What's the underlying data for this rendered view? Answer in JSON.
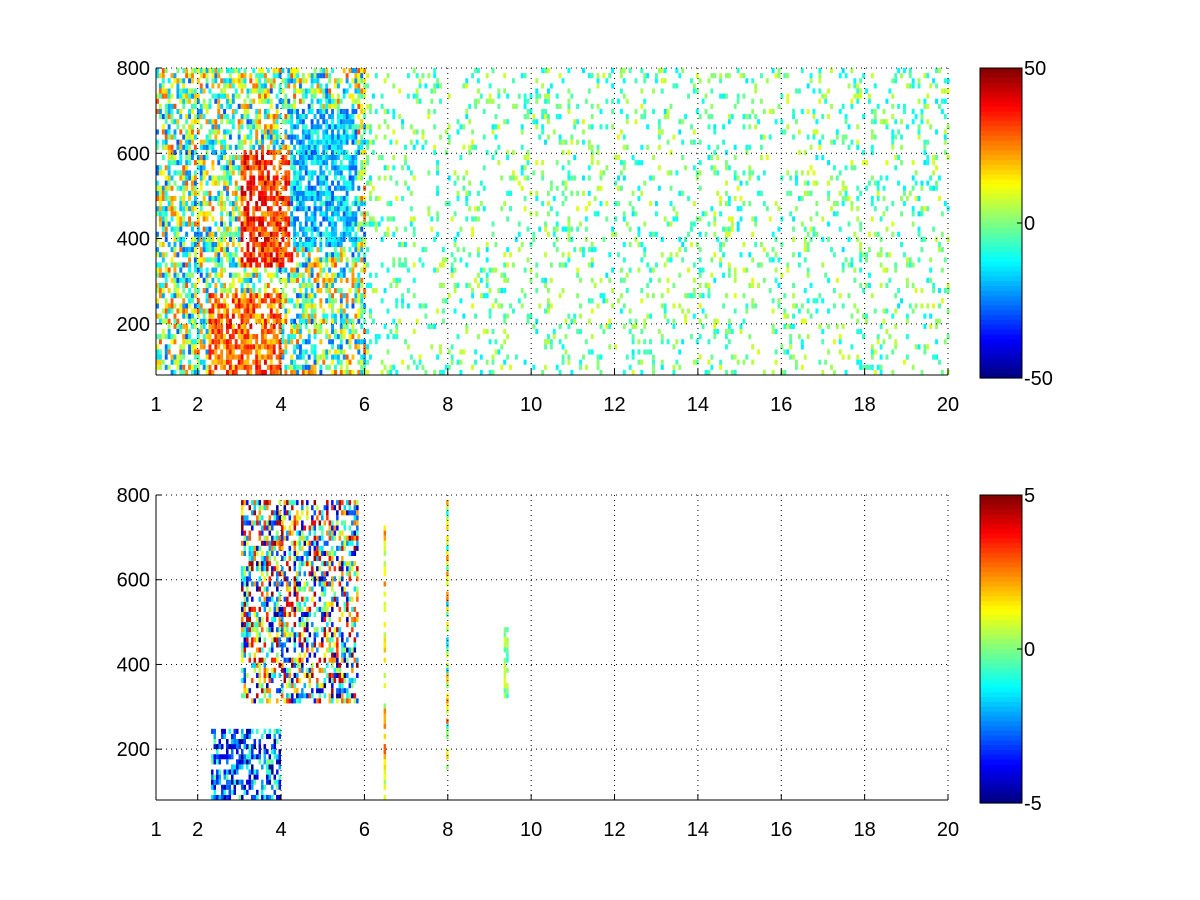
{
  "chart_data": [
    {
      "type": "heatmap",
      "title": "",
      "xlabel": "",
      "ylabel": "",
      "xlim": [
        1,
        20
      ],
      "ylim": [
        80,
        800
      ],
      "xticks": [
        1,
        2,
        4,
        6,
        8,
        10,
        12,
        14,
        16,
        18,
        20
      ],
      "yticks": [
        200,
        400,
        600,
        800
      ],
      "grid": true,
      "colormap": "jet",
      "colorbar": {
        "limits": [
          -50,
          50
        ],
        "ticks": [
          -50,
          0,
          50
        ]
      },
      "regions": [
        {
          "x": [
            1.0,
            6.0
          ],
          "y": [
            80,
            800
          ],
          "value_range": [
            -30,
            30
          ]
        },
        {
          "x": [
            6.0,
            20.0
          ],
          "y": [
            80,
            800
          ],
          "value_range": [
            -15,
            10
          ]
        },
        {
          "x": [
            2.2,
            4.0
          ],
          "y": [
            80,
            260
          ],
          "value_range": [
            15,
            40
          ]
        },
        {
          "x": [
            3.0,
            4.3
          ],
          "y": [
            330,
            600
          ],
          "value_range": [
            20,
            45
          ]
        },
        {
          "x": [
            4.2,
            5.8
          ],
          "y": [
            380,
            700
          ],
          "value_range": [
            -30,
            -5
          ]
        }
      ]
    },
    {
      "type": "heatmap",
      "title": "",
      "xlabel": "",
      "ylabel": "",
      "xlim": [
        1,
        20
      ],
      "ylim": [
        80,
        800
      ],
      "xticks": [
        1,
        2,
        4,
        6,
        8,
        10,
        12,
        14,
        16,
        18,
        20
      ],
      "yticks": [
        200,
        400,
        600,
        800
      ],
      "grid": true,
      "colormap": "jet",
      "colorbar": {
        "limits": [
          -5,
          5
        ],
        "ticks": [
          -5,
          0,
          5
        ]
      },
      "regions": [
        {
          "x": [
            3.0,
            5.8
          ],
          "y": [
            300,
            780
          ],
          "value_range": [
            -5,
            5
          ]
        },
        {
          "x": [
            2.3,
            4.0
          ],
          "y": [
            80,
            240
          ],
          "value_range": [
            -5,
            0
          ]
        },
        {
          "x": [
            6.4,
            6.5
          ],
          "y": [
            80,
            720
          ],
          "value_range": [
            0,
            3
          ]
        },
        {
          "x": [
            7.9,
            8.0
          ],
          "y": [
            150,
            790
          ],
          "value_range": [
            -2,
            3
          ]
        },
        {
          "x": [
            9.3,
            9.4
          ],
          "y": [
            320,
            480
          ],
          "value_range": [
            -1,
            1
          ]
        }
      ]
    }
  ]
}
